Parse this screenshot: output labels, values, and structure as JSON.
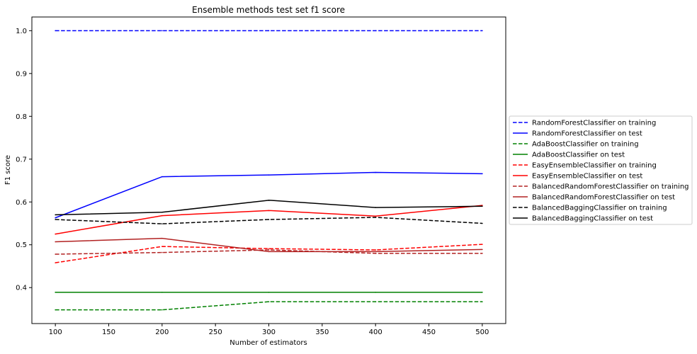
{
  "chart_data": {
    "type": "line",
    "title": "Ensemble methods test set f1 score",
    "xlabel": "Number of estimators",
    "ylabel": "F1 score",
    "x": [
      100,
      200,
      300,
      400,
      500
    ],
    "xticks": [
      100,
      150,
      200,
      250,
      300,
      350,
      400,
      450,
      500
    ],
    "xtick_labels": [
      "100",
      "150",
      "200",
      "250",
      "300",
      "350",
      "400",
      "450",
      "500"
    ],
    "yticks": [
      0.4,
      0.5,
      0.6,
      0.7,
      0.8,
      0.9,
      1.0
    ],
    "ytick_labels": [
      "0.4",
      "0.5",
      "0.6",
      "0.7",
      "0.8",
      "0.9",
      "1.0"
    ],
    "xlim": [
      78,
      522
    ],
    "ylim": [
      0.316,
      1.032
    ],
    "grid": false,
    "legend_position": "center-right-outside",
    "series": [
      {
        "name": "RandomForestClassifier on training",
        "color": "#0000ff",
        "dashed": true,
        "values": [
          1.0,
          1.0,
          1.0,
          1.0,
          1.0
        ]
      },
      {
        "name": "RandomForestClassifier on test",
        "color": "#0000ff",
        "dashed": false,
        "values": [
          0.563,
          0.659,
          0.663,
          0.669,
          0.666
        ]
      },
      {
        "name": "AdaBoostClassifier on training",
        "color": "#008000",
        "dashed": true,
        "values": [
          0.348,
          0.348,
          0.367,
          0.367,
          0.367
        ]
      },
      {
        "name": "AdaBoostClassifier on test",
        "color": "#008000",
        "dashed": false,
        "values": [
          0.389,
          0.389,
          0.389,
          0.389,
          0.389
        ]
      },
      {
        "name": "EasyEnsembleClassifier on training",
        "color": "#ff0000",
        "dashed": true,
        "values": [
          0.458,
          0.496,
          0.491,
          0.488,
          0.501
        ]
      },
      {
        "name": "EasyEnsembleClassifier on test",
        "color": "#ff0000",
        "dashed": false,
        "values": [
          0.525,
          0.568,
          0.58,
          0.567,
          0.592
        ]
      },
      {
        "name": "BalancedRandomForestClassifier on training",
        "color": "#b22222",
        "dashed": true,
        "values": [
          0.478,
          0.482,
          0.488,
          0.48,
          0.48
        ]
      },
      {
        "name": "BalancedRandomForestClassifier on test",
        "color": "#b22222",
        "dashed": false,
        "values": [
          0.507,
          0.515,
          0.484,
          0.484,
          0.489
        ]
      },
      {
        "name": "BalancedBaggingClassifier on training",
        "color": "#000000",
        "dashed": true,
        "values": [
          0.559,
          0.549,
          0.559,
          0.564,
          0.55
        ]
      },
      {
        "name": "BalancedBaggingClassifier on test",
        "color": "#000000",
        "dashed": false,
        "values": [
          0.57,
          0.576,
          0.604,
          0.587,
          0.59
        ]
      }
    ]
  }
}
